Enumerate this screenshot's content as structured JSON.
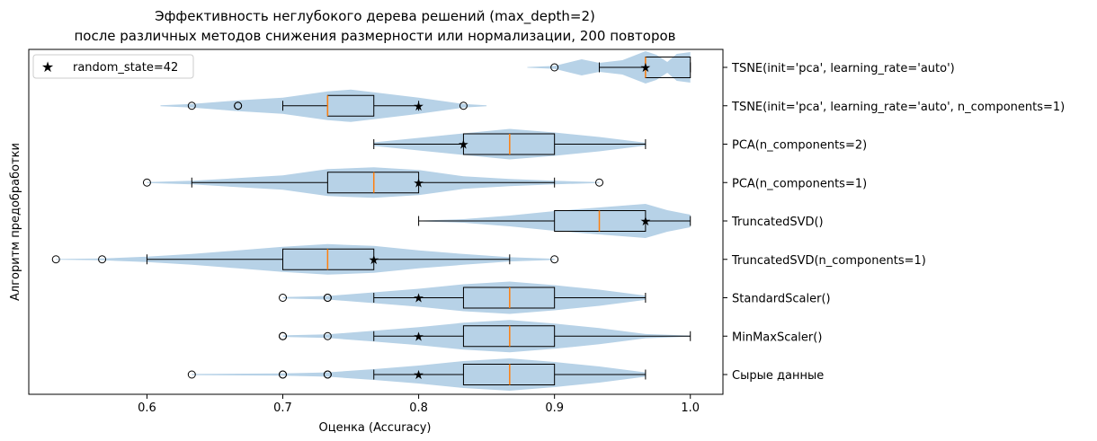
{
  "chart_data": {
    "type": "violin+box",
    "title": "Эффективность неглубокого дерева решений (max_depth=2)",
    "subtitle": "после различных методов снижения размерности или нормализации, 200 повторов",
    "xlabel": "Оценка (Accuracy)",
    "ylabel": "Алгоритм предобработки",
    "xlim": [
      0.513,
      1.024
    ],
    "x_ticks": [
      "0.6",
      "0.7",
      "0.8",
      "0.9",
      "1.0"
    ],
    "x_tick_values": [
      0.6,
      0.7,
      0.8,
      0.9,
      1.0
    ],
    "legend": {
      "label": "random_state=42",
      "position": "top-left"
    },
    "colors": {
      "violin": "#b7d2e7",
      "median": "#ff7f0e",
      "star": "#e01010",
      "box": "#000000"
    },
    "series": [
      {
        "label": "TSNE(init='pca', learning_rate='auto')",
        "violin_range": [
          0.88,
          1.0
        ],
        "violin_profile": [
          [
            0.88,
            0.02
          ],
          [
            0.9,
            0.08
          ],
          [
            0.92,
            0.45
          ],
          [
            0.933,
            0.25
          ],
          [
            0.95,
            0.4
          ],
          [
            0.967,
            0.9
          ],
          [
            0.975,
            0.7
          ],
          [
            0.983,
            0.3
          ],
          [
            0.99,
            0.75
          ],
          [
            1.0,
            0.85
          ]
        ],
        "whisker_low": 0.933,
        "q1": 0.967,
        "median": 0.967,
        "q3": 1.0,
        "whisker_high": 1.0,
        "outliers": [
          0.9
        ],
        "star": 0.967
      },
      {
        "label": "TSNE(init='pca', learning_rate='auto', n_components=1)",
        "violin_range": [
          0.61,
          0.85
        ],
        "violin_profile": [
          [
            0.61,
            0.02
          ],
          [
            0.633,
            0.1
          ],
          [
            0.667,
            0.3
          ],
          [
            0.7,
            0.45
          ],
          [
            0.733,
            0.8
          ],
          [
            0.75,
            0.9
          ],
          [
            0.767,
            0.75
          ],
          [
            0.8,
            0.45
          ],
          [
            0.833,
            0.1
          ],
          [
            0.85,
            0.02
          ]
        ],
        "whisker_low": 0.7,
        "q1": 0.733,
        "median": 0.733,
        "q3": 0.767,
        "whisker_high": 0.8,
        "outliers": [
          0.633,
          0.667,
          0.667,
          0.833
        ],
        "star": 0.8
      },
      {
        "label": "PCA(n_components=2)",
        "violin_range": [
          0.767,
          0.967
        ],
        "violin_profile": [
          [
            0.767,
            0.1
          ],
          [
            0.8,
            0.35
          ],
          [
            0.833,
            0.6
          ],
          [
            0.867,
            0.85
          ],
          [
            0.9,
            0.65
          ],
          [
            0.933,
            0.4
          ],
          [
            0.967,
            0.08
          ]
        ],
        "whisker_low": 0.767,
        "q1": 0.833,
        "median": 0.867,
        "q3": 0.9,
        "whisker_high": 0.967,
        "outliers": [],
        "star": 0.833
      },
      {
        "label": "PCA(n_components=1)",
        "violin_range": [
          0.6,
          0.933
        ],
        "violin_profile": [
          [
            0.6,
            0.03
          ],
          [
            0.633,
            0.1
          ],
          [
            0.7,
            0.4
          ],
          [
            0.733,
            0.75
          ],
          [
            0.767,
            0.85
          ],
          [
            0.8,
            0.7
          ],
          [
            0.833,
            0.35
          ],
          [
            0.867,
            0.2
          ],
          [
            0.9,
            0.1
          ],
          [
            0.933,
            0.02
          ]
        ],
        "whisker_low": 0.633,
        "q1": 0.733,
        "median": 0.767,
        "q3": 0.8,
        "whisker_high": 0.9,
        "outliers": [
          0.6,
          0.933
        ],
        "star": 0.8
      },
      {
        "label": "TruncatedSVD()",
        "violin_range": [
          0.8,
          1.0
        ],
        "violin_profile": [
          [
            0.8,
            0.02
          ],
          [
            0.833,
            0.1
          ],
          [
            0.867,
            0.3
          ],
          [
            0.9,
            0.55
          ],
          [
            0.933,
            0.75
          ],
          [
            0.967,
            0.95
          ],
          [
            0.983,
            0.6
          ],
          [
            1.0,
            0.35
          ]
        ],
        "whisker_low": 0.8,
        "q1": 0.9,
        "median": 0.933,
        "q3": 0.967,
        "whisker_high": 1.0,
        "outliers": [],
        "star": 0.967
      },
      {
        "label": "TruncatedSVD(n_components=1)",
        "violin_range": [
          0.533,
          0.9
        ],
        "violin_profile": [
          [
            0.533,
            0.02
          ],
          [
            0.567,
            0.05
          ],
          [
            0.6,
            0.15
          ],
          [
            0.633,
            0.3
          ],
          [
            0.667,
            0.5
          ],
          [
            0.7,
            0.7
          ],
          [
            0.733,
            0.85
          ],
          [
            0.767,
            0.75
          ],
          [
            0.8,
            0.5
          ],
          [
            0.833,
            0.3
          ],
          [
            0.867,
            0.12
          ],
          [
            0.9,
            0.03
          ]
        ],
        "whisker_low": 0.6,
        "q1": 0.7,
        "median": 0.733,
        "q3": 0.767,
        "whisker_high": 0.867,
        "outliers": [
          0.533,
          0.567,
          0.9
        ],
        "star": 0.767
      },
      {
        "label": "StandardScaler()",
        "violin_range": [
          0.7,
          0.967
        ],
        "violin_profile": [
          [
            0.7,
            0.04
          ],
          [
            0.733,
            0.1
          ],
          [
            0.767,
            0.3
          ],
          [
            0.8,
            0.5
          ],
          [
            0.833,
            0.75
          ],
          [
            0.867,
            0.9
          ],
          [
            0.9,
            0.7
          ],
          [
            0.933,
            0.45
          ],
          [
            0.967,
            0.12
          ]
        ],
        "whisker_low": 0.767,
        "q1": 0.833,
        "median": 0.867,
        "q3": 0.9,
        "whisker_high": 0.967,
        "outliers": [
          0.7,
          0.733,
          0.733
        ],
        "star": 0.8
      },
      {
        "label": "MinMaxScaler()",
        "violin_range": [
          0.7,
          1.0
        ],
        "violin_profile": [
          [
            0.7,
            0.04
          ],
          [
            0.733,
            0.1
          ],
          [
            0.767,
            0.3
          ],
          [
            0.8,
            0.5
          ],
          [
            0.833,
            0.75
          ],
          [
            0.867,
            0.9
          ],
          [
            0.9,
            0.7
          ],
          [
            0.933,
            0.45
          ],
          [
            0.967,
            0.12
          ],
          [
            1.0,
            0.03
          ]
        ],
        "whisker_low": 0.767,
        "q1": 0.833,
        "median": 0.867,
        "q3": 0.9,
        "whisker_high": 1.0,
        "outliers": [
          0.7,
          0.7,
          0.733
        ],
        "star": 0.8
      },
      {
        "label": "Сырые данные",
        "violin_range": [
          0.633,
          0.967
        ],
        "violin_profile": [
          [
            0.633,
            0.03
          ],
          [
            0.7,
            0.06
          ],
          [
            0.733,
            0.12
          ],
          [
            0.767,
            0.3
          ],
          [
            0.8,
            0.5
          ],
          [
            0.833,
            0.75
          ],
          [
            0.867,
            0.9
          ],
          [
            0.9,
            0.7
          ],
          [
            0.933,
            0.45
          ],
          [
            0.967,
            0.12
          ]
        ],
        "whisker_low": 0.767,
        "q1": 0.833,
        "median": 0.867,
        "q3": 0.9,
        "whisker_high": 0.967,
        "outliers": [
          0.633,
          0.7,
          0.7,
          0.733,
          0.733
        ],
        "star": 0.8
      }
    ]
  }
}
